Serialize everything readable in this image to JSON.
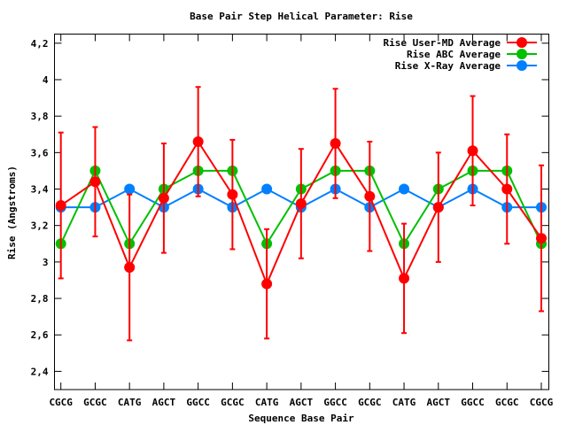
{
  "chart_data": {
    "type": "line",
    "title": "Base Pair Step Helical Parameter: Rise",
    "xlabel": "Sequence Base Pair",
    "ylabel": "Rise (Angstroms)",
    "ylim": [
      2.3,
      4.25
    ],
    "yticks": [
      2.4,
      2.6,
      2.8,
      3,
      3.2,
      3.4,
      3.6,
      3.8,
      4,
      4.2
    ],
    "ytick_labels": [
      "2,4",
      "2,6",
      "2,8",
      "3",
      "3,2",
      "3,4",
      "3,6",
      "3,8",
      "4",
      "4,2"
    ],
    "categories": [
      "CGCG",
      "GCGC",
      "CATG",
      "AGCT",
      "GGCC",
      "GCGC",
      "CATG",
      "AGCT",
      "GGCC",
      "GCGC",
      "CATG",
      "AGCT",
      "GGCC",
      "GCGC",
      "CGCG"
    ],
    "legend_position": "top-right",
    "grid": false,
    "series": [
      {
        "name": "Rise User-MD Average",
        "color": "#ff0000",
        "values": [
          3.31,
          3.44,
          2.97,
          3.35,
          3.66,
          3.37,
          2.88,
          3.32,
          3.65,
          3.36,
          2.91,
          3.3,
          3.61,
          3.4,
          3.13
        ],
        "errors": [
          0.4,
          0.3,
          0.4,
          0.3,
          0.3,
          0.3,
          0.3,
          0.3,
          0.3,
          0.3,
          0.3,
          0.3,
          0.3,
          0.3,
          0.4
        ]
      },
      {
        "name": "Rise ABC Average",
        "color": "#00c000",
        "values": [
          3.1,
          3.5,
          3.1,
          3.4,
          3.5,
          3.5,
          3.1,
          3.4,
          3.5,
          3.5,
          3.1,
          3.4,
          3.5,
          3.5,
          3.1
        ]
      },
      {
        "name": "Rise X-Ray Average",
        "color": "#0080ff",
        "values": [
          3.3,
          3.3,
          3.4,
          3.3,
          3.4,
          3.3,
          3.4,
          3.3,
          3.4,
          3.3,
          3.4,
          3.3,
          3.4,
          3.3,
          3.3
        ]
      }
    ]
  }
}
